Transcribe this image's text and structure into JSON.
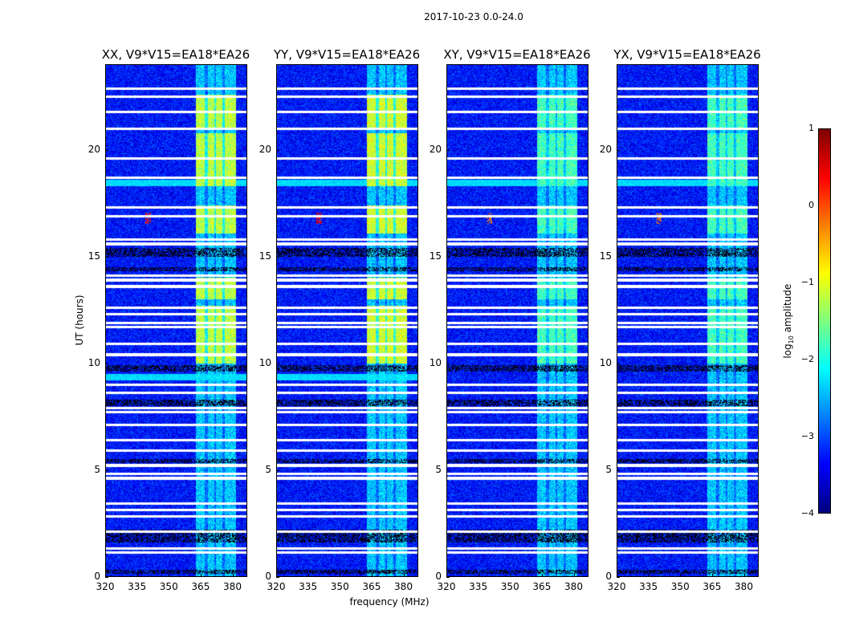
{
  "chart_data": {
    "type": "heatmap",
    "title": "2017-10-23 0.0-24.0",
    "xlabel": "frequency (MHz)",
    "ylabel": "UT (hours)",
    "xlim": [
      320,
      387
    ],
    "ylim": [
      0,
      24
    ],
    "xticks": [
      "320",
      "335",
      "350",
      "365",
      "380"
    ],
    "xtick_values": [
      320,
      335,
      350,
      365,
      380
    ],
    "yticks": [
      "0",
      "5",
      "10",
      "15",
      "20"
    ],
    "ytick_values": [
      0,
      5,
      10,
      15,
      20
    ],
    "panels": [
      {
        "title": "XX, V9*V15=EA18*EA26",
        "band_level": -1.2,
        "rfi_level": 0.3
      },
      {
        "title": "YY, V9*V15=EA18*EA26",
        "band_level": -1.1,
        "rfi_level": 0.4
      },
      {
        "title": "XY, V9*V15=EA18*EA26",
        "band_level": -1.8,
        "rfi_level": -0.2
      },
      {
        "title": "YX, V9*V15=EA18*EA26",
        "band_level": -1.8,
        "rfi_level": -0.2
      }
    ],
    "background_level": -3.3,
    "bright_band_mhz": [
      363,
      382
    ],
    "active_time_ranges_ut": [
      [
        21.0,
        22.6
      ],
      [
        18.3,
        20.8
      ],
      [
        16.1,
        17.4
      ],
      [
        13.0,
        14.0
      ],
      [
        10.0,
        12.7
      ]
    ],
    "flagged_times_ut": [
      22.9,
      22.5,
      21.8,
      21.0,
      19.6,
      18.7,
      17.3,
      16.9,
      15.8,
      15.6,
      14.1,
      13.9,
      13.6,
      12.6,
      12.3,
      11.9,
      11.7,
      10.9,
      10.4,
      9.0,
      8.6,
      7.9,
      7.7,
      7.1,
      6.4,
      5.9,
      5.2,
      4.8,
      4.6,
      3.4,
      3.1,
      2.8,
      2.1,
      1.3,
      1.1
    ],
    "dark_time_ranges_ut": [
      [
        15.0,
        15.4
      ],
      [
        14.3,
        14.5
      ],
      [
        9.6,
        9.9
      ],
      [
        8.0,
        8.3
      ],
      [
        5.3,
        5.5
      ],
      [
        1.6,
        2.2
      ],
      [
        0.1,
        0.3
      ]
    ],
    "colorbar": {
      "label": "log10 amplitude",
      "label_main": "log",
      "label_sub": "10",
      "label_rest": " amplitude",
      "range": [
        -4,
        1
      ],
      "ticks": [
        "1",
        "0",
        "−1",
        "−2",
        "−3",
        "−4"
      ],
      "tick_values": [
        1,
        0,
        -1,
        -2,
        -3,
        -4
      ],
      "colormap": "jet"
    }
  }
}
